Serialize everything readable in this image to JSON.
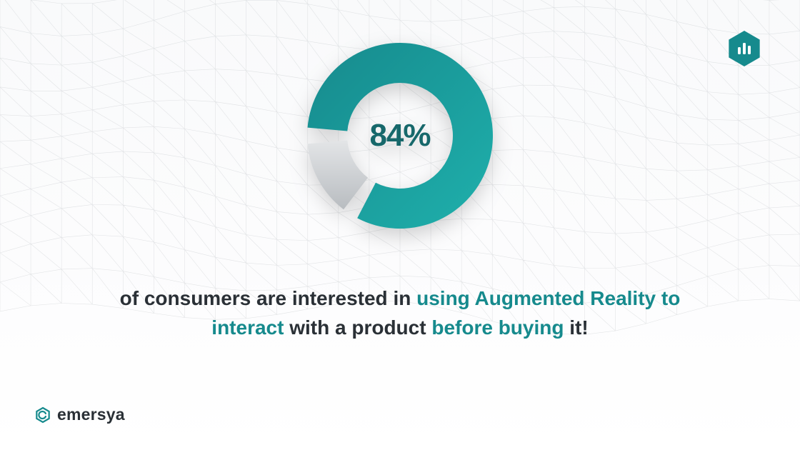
{
  "chart": {
    "type": "donut",
    "value": 84,
    "max": 100,
    "center_label": "84%",
    "ring_thickness": 56,
    "outer_radius": 130,
    "gap_deg": 10,
    "start_angle_deg": -90,
    "primary_color": "#168a8d",
    "primary_gradient_end": "#1fb0ac",
    "remainder_color_light": "#e3e5e7",
    "remainder_color_dark": "#b8bcc0",
    "center_label_color": "#17686b",
    "center_label_fontsize": 44,
    "center_label_fontweight": 800
  },
  "text": {
    "segments": [
      {
        "t": "of consumers are interested in ",
        "hl": false
      },
      {
        "t": "using Augmented Reality",
        "hl": true
      },
      {
        "t": " ",
        "hl": false
      },
      {
        "t": "to interact",
        "hl": true
      },
      {
        "t": " with a product ",
        "hl": false
      },
      {
        "t": "before buying",
        "hl": true
      },
      {
        "t": " it!",
        "hl": false
      }
    ],
    "body_color": "#2a3036",
    "accent_color": "#168a8d",
    "fontsize": 28,
    "fontweight": 700
  },
  "badge": {
    "fill": "#168a8d",
    "bar_color": "#ffffff"
  },
  "logo": {
    "word": "emersya",
    "word_color": "#2a3036",
    "mark_color": "#168a8d"
  },
  "mesh": {
    "stroke": "#9aa0a6",
    "opacity": 0.25
  },
  "background_top": "#f9fafb",
  "background_bottom": "#ffffff"
}
